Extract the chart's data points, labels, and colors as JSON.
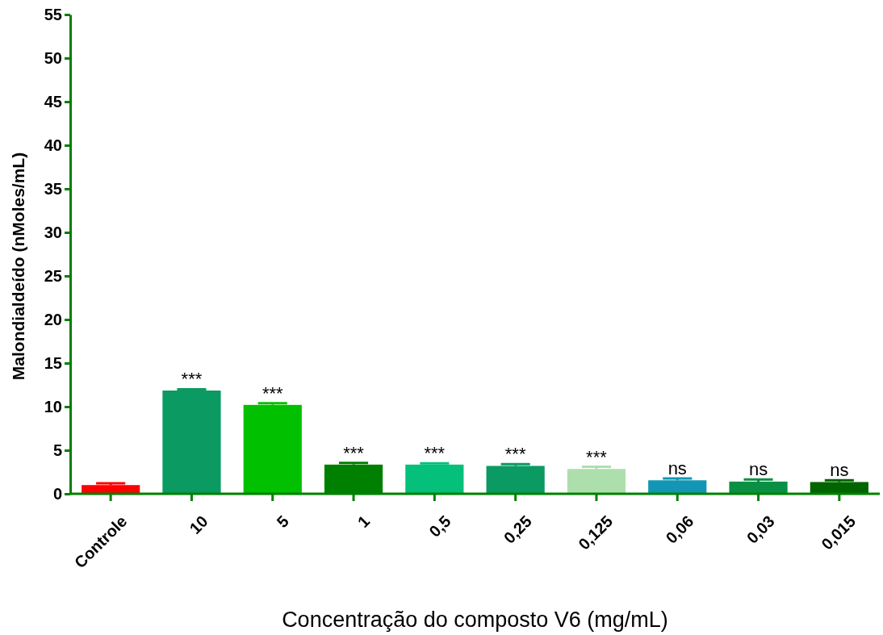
{
  "chart_data": {
    "type": "bar",
    "xlabel": "Concentração do composto V6 (mg/mL)",
    "ylabel": "Malondialdeído (nMoles/mL)",
    "categories": [
      "Controle",
      "10",
      "5",
      "1",
      "0,5",
      "0,25",
      "0,125",
      "0,06",
      "0,03",
      "0,015"
    ],
    "values": [
      1.0,
      11.85,
      10.2,
      3.35,
      3.35,
      3.2,
      2.85,
      1.55,
      1.4,
      1.35
    ],
    "errors": [
      [
        1.0,
        1.2
      ],
      [
        11.85,
        12.0
      ],
      [
        10.2,
        10.4
      ],
      [
        3.35,
        3.55
      ],
      [
        3.35,
        3.5
      ],
      [
        3.2,
        3.4
      ],
      [
        2.85,
        3.1
      ],
      [
        1.55,
        1.75
      ],
      [
        1.4,
        1.65
      ],
      [
        1.35,
        1.55
      ]
    ],
    "colors": [
      "#ff0000",
      "#0a9a62",
      "#00c000",
      "#008000",
      "#05c07a",
      "#0a9a62",
      "#addfad",
      "#1396b4",
      "#0a9044",
      "#006400"
    ],
    "ylim": [
      0,
      55
    ],
    "yticks": [
      0,
      5,
      10,
      15,
      20,
      25,
      30,
      35,
      40,
      45,
      50,
      55
    ],
    "grid": false,
    "annotations": [
      {
        "text": "***",
        "x": "10",
        "y": 12.0
      },
      {
        "text": "***",
        "x": "5",
        "y": 10.4
      },
      {
        "text": "***",
        "x": "1",
        "y": 3.55
      },
      {
        "text": "***",
        "x": "0,5",
        "y": 3.5
      },
      {
        "text": "***",
        "x": "0,25",
        "y": 3.4
      },
      {
        "text": "***",
        "x": "0,125",
        "y": 3.1
      },
      {
        "text": "ns",
        "x": "0,06",
        "y": 1.75
      },
      {
        "text": "ns",
        "x": "0,03",
        "y": 1.65
      },
      {
        "text": "ns",
        "x": "0,015",
        "y": 1.55
      }
    ]
  }
}
